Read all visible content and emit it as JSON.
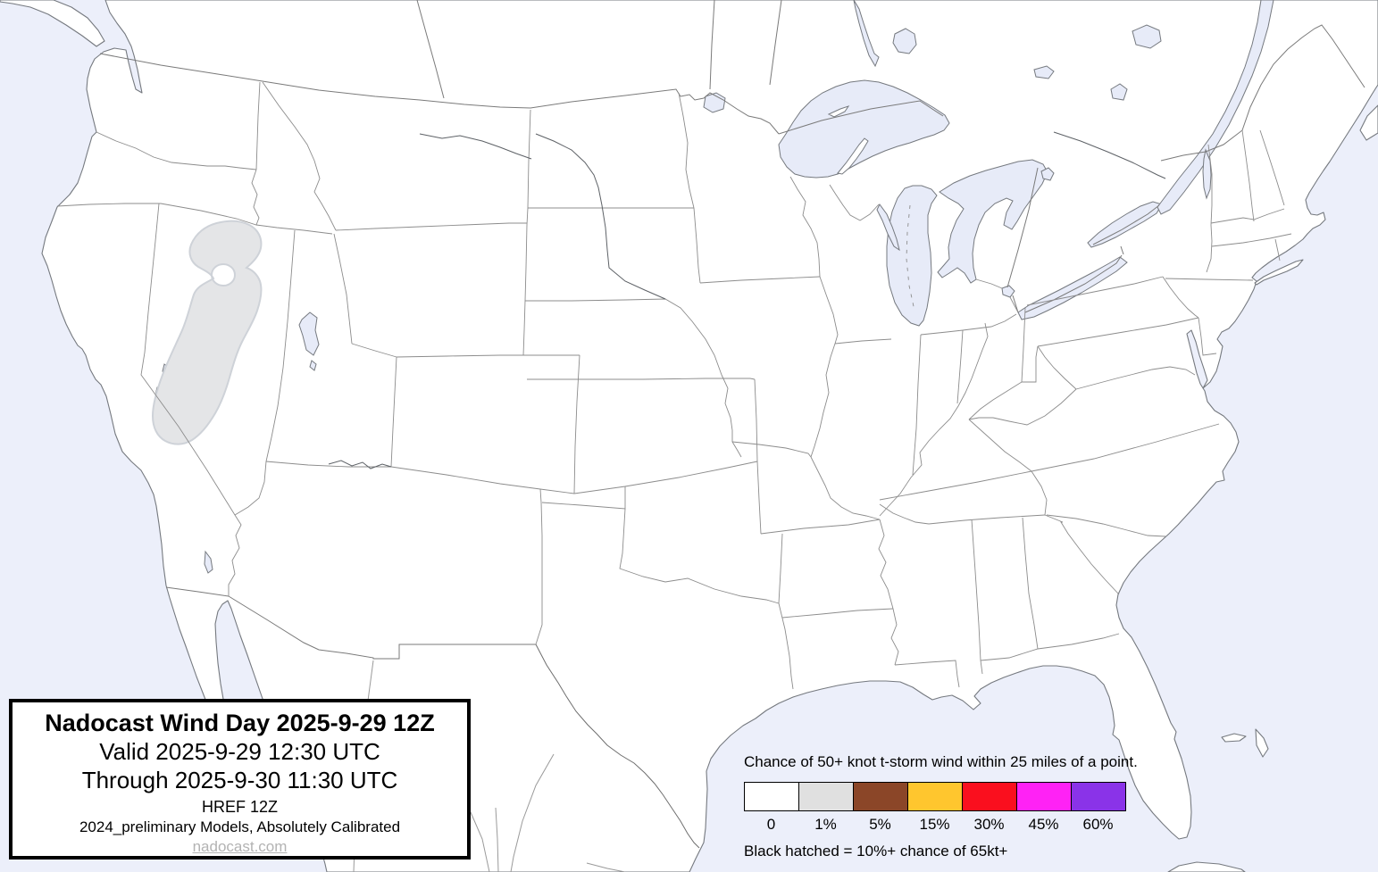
{
  "title_box": {
    "title": "Nadocast Wind Day 2025-9-29 12Z",
    "valid": "Valid 2025-9-29 12:30 UTC",
    "through": "Through 2025-9-30 11:30 UTC",
    "model": "HREF 12Z",
    "models_note": "2024_preliminary Models, Absolutely Calibrated",
    "link": "nadocast.com"
  },
  "legend": {
    "title": "Chance of 50+ knot t-storm wind within 25 miles of a point.",
    "swatches": [
      {
        "label": "0",
        "color": "#ffffff"
      },
      {
        "label": "1%",
        "color": "#e0e0e0"
      },
      {
        "label": "5%",
        "color": "#8b4628"
      },
      {
        "label": "15%",
        "color": "#ffc62e"
      },
      {
        "label": "30%",
        "color": "#fa0f1e"
      },
      {
        "label": "45%",
        "color": "#ff22f5"
      },
      {
        "label": "60%",
        "color": "#8a33e8"
      }
    ],
    "footnote": "Black hatched = 10%+ chance of 65kt+"
  },
  "map": {
    "region": "Contiguous United States",
    "risk_areas": [
      {
        "level": "1%",
        "location": "Northern Nevada / SE Oregon",
        "color": "#e4e5e7"
      }
    ],
    "colors": {
      "ocean": "#eceffa",
      "lakes": "#e7ebf8",
      "land": "#ffffff",
      "state_borders": "#8c8c8c",
      "coastline": "#75797f"
    }
  }
}
